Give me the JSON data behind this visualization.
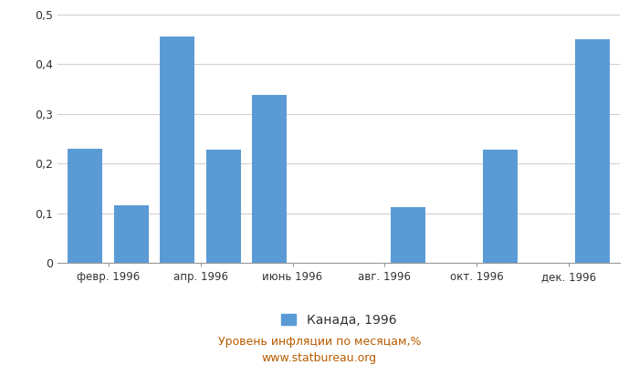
{
  "x_tick_labels": [
    "февр. 1996",
    "апр. 1996",
    "июнь 1996",
    "авг. 1996",
    "окт. 1996",
    "дек. 1996"
  ],
  "values": [
    0.23,
    0.115,
    0.455,
    0.228,
    0.338,
    0.0,
    0.0,
    0.113,
    0.0,
    0.228,
    0.0,
    0.45
  ],
  "bar_color": "#5b9bd5",
  "ylim": [
    0,
    0.5
  ],
  "yticks": [
    0,
    0.1,
    0.2,
    0.3,
    0.4,
    0.5
  ],
  "ytick_labels": [
    "0",
    "0,1",
    "0,2",
    "0,3",
    "0,4",
    "0,5"
  ],
  "legend_label": "Канада, 1996",
  "xlabel": "Уровень инфляции по месяцам,%",
  "source": "www.statbureau.org",
  "background_color": "#ffffff",
  "grid_color": "#d0d0d0"
}
